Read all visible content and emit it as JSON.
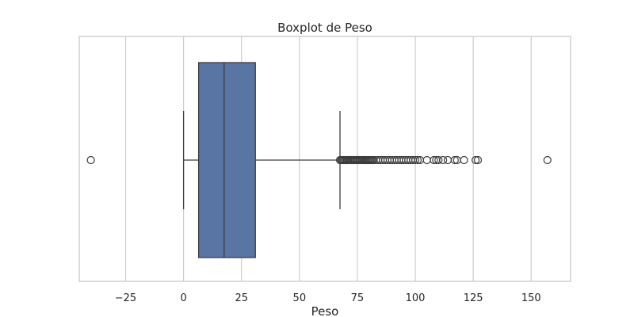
{
  "chart_data": {
    "type": "boxplot",
    "orientation": "horizontal",
    "title": "Boxplot de Peso",
    "xlabel": "Peso",
    "ylabel": "",
    "xlim": [
      -45,
      167
    ],
    "xticks": [
      -25,
      0,
      25,
      50,
      75,
      100,
      125,
      150
    ],
    "xtick_labels": [
      "−25",
      "0",
      "25",
      "50",
      "75",
      "100",
      "125",
      "150"
    ],
    "grid": true,
    "box": {
      "whisker_low": 0,
      "q1": 6.5,
      "median": 17.5,
      "q3": 31,
      "whisker_high": 67.5,
      "color": "#5975a4"
    },
    "outliers": [
      -40,
      67.5,
      68,
      68.5,
      69,
      69.5,
      70,
      70.5,
      71,
      71.5,
      72,
      72.5,
      73,
      73.5,
      74,
      74.5,
      75,
      75.5,
      76,
      76.5,
      77,
      77.5,
      78,
      78.5,
      79,
      79.5,
      80,
      80.5,
      81,
      81.5,
      82,
      83,
      84,
      85,
      86,
      87,
      88,
      89,
      90,
      91,
      92,
      93,
      94,
      95,
      96,
      97,
      98,
      99,
      100,
      101,
      102,
      105,
      108,
      109,
      110,
      112,
      114,
      117,
      118,
      121,
      126,
      127,
      157
    ]
  }
}
